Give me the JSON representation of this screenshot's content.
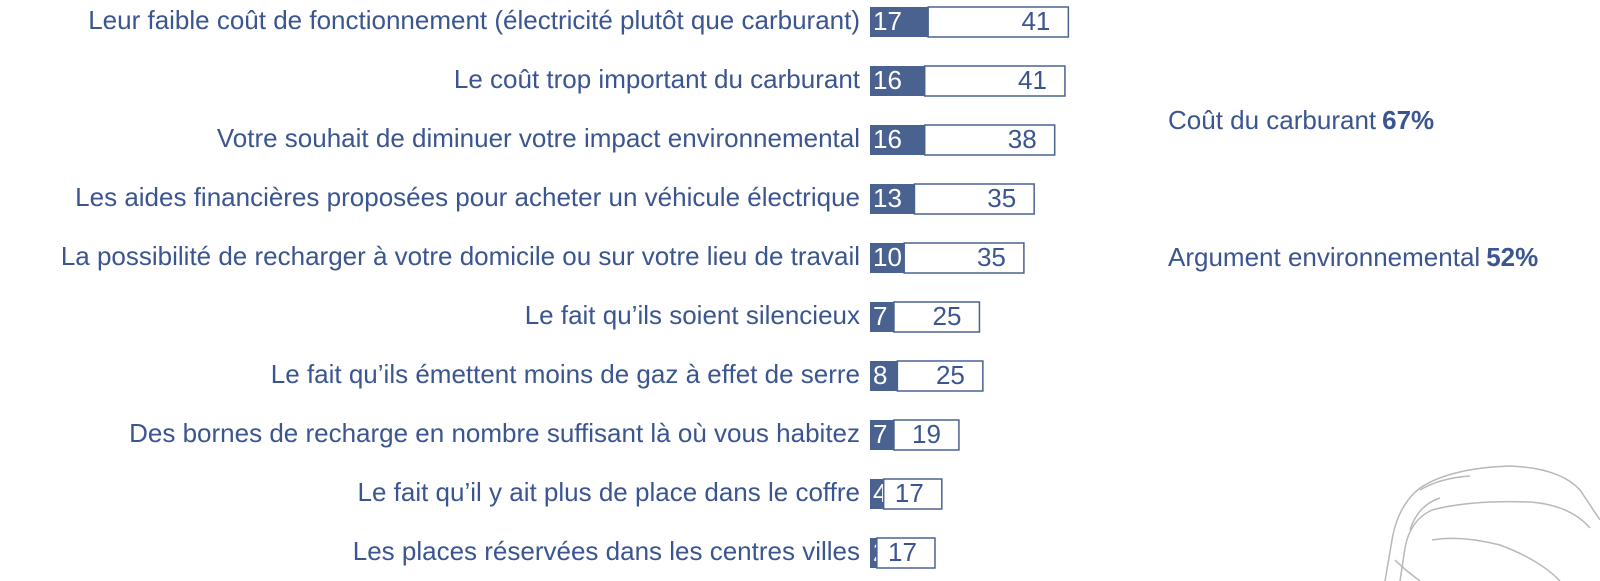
{
  "chart_data": {
    "type": "bar",
    "orientation": "horizontal",
    "stacked": true,
    "categories": [
      "Leur faible coût de fonctionnement (électricité plutôt que carburant)",
      "Le coût trop important du carburant",
      "Votre souhait de diminuer votre impact environnemental",
      "Les aides financières proposées pour acheter un véhicule électrique",
      "La possibilité de recharger à votre domicile ou sur votre lieu de travail",
      "Le fait qu’ils soient silencieux",
      "Le fait qu’ils émettent moins de gaz à effet de serre",
      "Des bornes de recharge en nombre suffisant là où vous habitez",
      "Le fait qu’il y ait plus de place dans le coffre",
      "Les places réservées dans les centres villes"
    ],
    "series": [
      {
        "color": "#4a6290",
        "values": [
          17,
          16,
          16,
          13,
          10,
          7,
          8,
          7,
          4,
          2
        ]
      },
      {
        "color": "#ffffff",
        "values": [
          41,
          41,
          38,
          35,
          35,
          25,
          25,
          19,
          17,
          17
        ]
      }
    ],
    "annotations": [
      {
        "label": "Coût du carburant",
        "value_label": "67%"
      },
      {
        "label": "Argument environnemental",
        "value_label": "52%"
      }
    ]
  }
}
